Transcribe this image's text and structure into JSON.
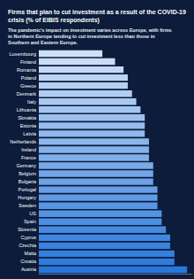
{
  "chart_data": {
    "type": "bar",
    "orientation": "horizontal",
    "title": "Firms that plan to cut investment as a result of the COVID-19 crisis (% of EIBIS respondents)",
    "subtitle": "The pandemic's impact on investment varies across Europe, with firms in Northern Europe tending to cut investment less than those in Southern and Eastern Europe.",
    "categories": [
      "Luxembourg",
      "Finland",
      "Romania",
      "Poland",
      "Greece",
      "Denmark",
      "Italy",
      "Lithuania",
      "Slovakia",
      "Estonia",
      "Latvia",
      "Netherlands",
      "Ireland",
      "France",
      "Germany",
      "Belgium",
      "Bulgaria",
      "Portugal",
      "Hungary",
      "Sweden",
      "US",
      "Spain",
      "Slovenia",
      "Cyprus",
      "Czechia",
      "Malta",
      "Croatia",
      "Austria"
    ],
    "values": [
      35,
      38,
      40,
      41,
      41,
      42,
      43,
      44,
      45,
      45,
      45,
      46,
      46,
      46,
      47,
      47,
      47,
      48,
      48,
      48,
      49,
      49,
      50,
      51,
      51,
      52,
      52,
      55
    ],
    "colors": [
      "#cfe0f7",
      "#c9dcf6",
      "#c3d8f5",
      "#bcd4f4",
      "#b6d1f3",
      "#b0cdf2",
      "#aac9f1",
      "#a4c5f0",
      "#9dc1ef",
      "#97bdee",
      "#91b9ed",
      "#8bb6ec",
      "#85b2eb",
      "#7faeea",
      "#78aae9",
      "#72a6e8",
      "#6ca2e7",
      "#669ee6",
      "#609be5",
      "#5997e4",
      "#5393e3",
      "#4d8fe2",
      "#478be1",
      "#4187e0",
      "#3a83df",
      "#3480de",
      "#2e7cdd",
      "#2878dc"
    ],
    "xlim": [
      20,
      56
    ],
    "grid": false,
    "tick_labels": "y"
  }
}
